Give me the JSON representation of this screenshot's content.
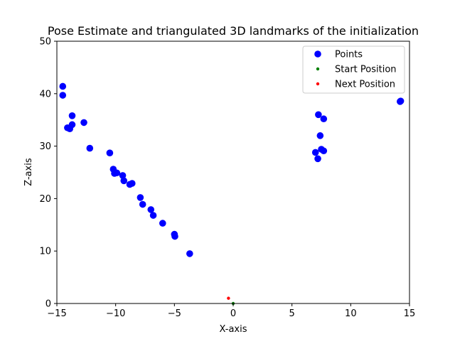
{
  "chart_data": {
    "type": "scatter",
    "title": "Pose Estimate and triangulated 3D landmarks of the initialization",
    "xlabel": "X-axis",
    "ylabel": "Z-axis",
    "xlim": [
      -15,
      15
    ],
    "ylim": [
      0,
      50
    ],
    "xticks": [
      -15,
      -10,
      -5,
      0,
      5,
      10,
      15
    ],
    "yticks": [
      0,
      10,
      20,
      30,
      40,
      50
    ],
    "grid": false,
    "legend_position": "top-right",
    "series": [
      {
        "name": "Points",
        "color": "#0000ff",
        "marker": "large-circle",
        "points": [
          [
            -14.5,
            41.4
          ],
          [
            -14.5,
            39.7
          ],
          [
            -14.1,
            33.5
          ],
          [
            -13.9,
            33.3
          ],
          [
            -13.7,
            35.8
          ],
          [
            -13.7,
            34.1
          ],
          [
            -12.7,
            34.5
          ],
          [
            -12.2,
            29.6
          ],
          [
            -10.5,
            28.7
          ],
          [
            -10.2,
            25.6
          ],
          [
            -10.1,
            24.8
          ],
          [
            -9.9,
            24.9
          ],
          [
            -9.4,
            24.4
          ],
          [
            -9.3,
            23.4
          ],
          [
            -8.8,
            22.7
          ],
          [
            -8.6,
            22.9
          ],
          [
            -7.9,
            20.2
          ],
          [
            -7.7,
            18.9
          ],
          [
            -7.0,
            17.9
          ],
          [
            -6.8,
            16.8
          ],
          [
            -6.0,
            15.3
          ],
          [
            -5.0,
            13.2
          ],
          [
            -4.96,
            12.8
          ],
          [
            -3.7,
            9.5
          ],
          [
            7.0,
            28.8
          ],
          [
            7.2,
            27.6
          ],
          [
            7.25,
            36.0
          ],
          [
            7.4,
            32.0
          ],
          [
            7.5,
            29.4
          ],
          [
            7.7,
            35.2
          ],
          [
            7.7,
            29.1
          ],
          [
            14.2,
            38.5
          ],
          [
            14.25,
            38.6
          ]
        ]
      },
      {
        "name": "Start Position",
        "color": "#008000",
        "marker": "small-dot",
        "points": [
          [
            0,
            0
          ]
        ]
      },
      {
        "name": "Next Position",
        "color": "#ff0000",
        "marker": "small-dot",
        "points": [
          [
            -0.4,
            1.0
          ]
        ]
      }
    ]
  }
}
